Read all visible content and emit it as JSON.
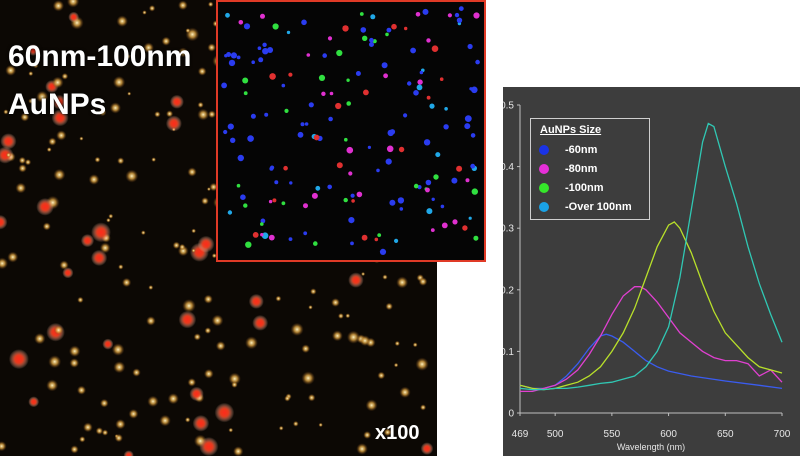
{
  "micro": {
    "title_line1": "60nm-100nm",
    "title_line2": "AuNPs",
    "magnification": "x100"
  },
  "legend": {
    "title": "AuNPs Size",
    "items": [
      {
        "label": "-60nm",
        "color": "#1a33e6"
      },
      {
        "label": "-80nm",
        "color": "#e62fd8"
      },
      {
        "label": "-100nm",
        "color": "#35e62a"
      },
      {
        "label": "-Over 100nm",
        "color": "#1aa2e6"
      }
    ]
  },
  "chart_data": {
    "type": "line",
    "xlabel": "Wavelength (nm)",
    "ylabel": "",
    "xlim": [
      469,
      700
    ],
    "ylim": [
      0,
      0.5
    ],
    "xticks": [
      "469",
      "500",
      "550",
      "600",
      "650",
      "700"
    ],
    "xtick_values": [
      469,
      500,
      550,
      600,
      650,
      700
    ],
    "yticks": [
      "0",
      "0.1",
      "0.2",
      "0.3",
      "0.4",
      "0.5"
    ],
    "ytick_values": [
      0,
      0.1,
      0.2,
      0.3,
      0.4,
      0.5
    ],
    "series": [
      {
        "name": "60nm",
        "color": "#3a5cf0",
        "x": [
          469,
          480,
          490,
          500,
          510,
          520,
          530,
          540,
          545,
          550,
          560,
          570,
          580,
          590,
          600,
          620,
          650,
          680,
          700
        ],
        "y": [
          0.045,
          0.04,
          0.04,
          0.045,
          0.06,
          0.08,
          0.105,
          0.125,
          0.128,
          0.125,
          0.115,
          0.1,
          0.085,
          0.075,
          0.068,
          0.06,
          0.052,
          0.045,
          0.04
        ]
      },
      {
        "name": "80nm",
        "color": "#e040d0",
        "x": [
          469,
          480,
          490,
          500,
          510,
          520,
          530,
          540,
          550,
          560,
          570,
          575,
          580,
          590,
          600,
          610,
          620,
          630,
          640,
          650,
          660,
          670,
          680,
          690,
          700
        ],
        "y": [
          0.035,
          0.035,
          0.04,
          0.045,
          0.055,
          0.07,
          0.095,
          0.125,
          0.16,
          0.19,
          0.205,
          0.205,
          0.2,
          0.18,
          0.155,
          0.13,
          0.115,
          0.1,
          0.09,
          0.085,
          0.085,
          0.08,
          0.06,
          0.07,
          0.05
        ]
      },
      {
        "name": "100nm",
        "color": "#b8e02a",
        "x": [
          469,
          480,
          490,
          500,
          510,
          520,
          530,
          540,
          550,
          560,
          570,
          580,
          590,
          600,
          605,
          610,
          620,
          630,
          640,
          650,
          660,
          670,
          680,
          690,
          700
        ],
        "y": [
          0.045,
          0.04,
          0.038,
          0.04,
          0.045,
          0.05,
          0.06,
          0.075,
          0.1,
          0.13,
          0.17,
          0.22,
          0.27,
          0.305,
          0.31,
          0.3,
          0.26,
          0.21,
          0.165,
          0.13,
          0.11,
          0.09,
          0.075,
          0.07,
          0.065
        ]
      },
      {
        "name": "Over 100nm",
        "color": "#30c8b4",
        "x": [
          469,
          480,
          490,
          500,
          510,
          520,
          530,
          540,
          550,
          560,
          570,
          580,
          590,
          600,
          610,
          620,
          630,
          635,
          640,
          650,
          660,
          670,
          680,
          690,
          700
        ],
        "y": [
          0.04,
          0.038,
          0.038,
          0.04,
          0.04,
          0.042,
          0.045,
          0.048,
          0.05,
          0.055,
          0.06,
          0.075,
          0.1,
          0.14,
          0.22,
          0.33,
          0.44,
          0.47,
          0.465,
          0.4,
          0.34,
          0.27,
          0.21,
          0.16,
          0.115
        ]
      }
    ],
    "legend_position": "top-left",
    "grid": false
  }
}
